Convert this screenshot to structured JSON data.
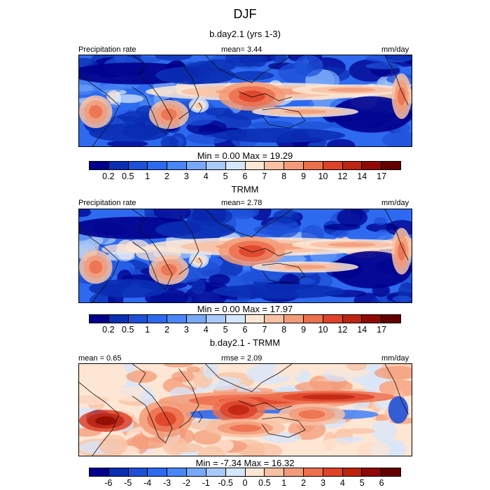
{
  "title": "DJF",
  "chart_data": [
    {
      "type": "heatmap",
      "title": "b.day2.1 (yrs 1-3)",
      "left_label": "Precipitation rate",
      "center_label": "mean=   3.44",
      "units": "mm/day",
      "min_max": "Min =   0.00 Max =  19.29",
      "colorbar_ticks": [
        "0.2",
        "0.5",
        "1",
        "2",
        "3",
        "4",
        "5",
        "6",
        "7",
        "8",
        "9",
        "10",
        "12",
        "14",
        "17"
      ],
      "colors": [
        "#00008c",
        "#0a2fb4",
        "#1e50d7",
        "#2d6af0",
        "#4a86f5",
        "#78a8f8",
        "#a9c9fa",
        "#d6e6fc",
        "#fde6d4",
        "#f8c1a3",
        "#f39b78",
        "#ec6f4e",
        "#de4228",
        "#bd2412",
        "#8f0a05",
        "#650000"
      ]
    },
    {
      "type": "heatmap",
      "title": "TRMM",
      "left_label": "Precipitation rate",
      "center_label": "mean=   2.78",
      "units": "mm/day",
      "min_max": "Min =   0.00 Max =  17.97",
      "colorbar_ticks": [
        "0.2",
        "0.5",
        "1",
        "2",
        "3",
        "4",
        "5",
        "6",
        "7",
        "8",
        "9",
        "10",
        "12",
        "14",
        "17"
      ],
      "colors": [
        "#00008c",
        "#0a2fb4",
        "#1e50d7",
        "#2d6af0",
        "#4a86f5",
        "#78a8f8",
        "#a9c9fa",
        "#d6e6fc",
        "#fde6d4",
        "#f8c1a3",
        "#f39b78",
        "#ec6f4e",
        "#de4228",
        "#bd2412",
        "#8f0a05",
        "#650000"
      ]
    },
    {
      "type": "heatmap",
      "title": "b.day2.1 - TRMM",
      "left_label": "mean =   0.65",
      "center_label": "rmse =   2.09",
      "units": "mm/day",
      "min_max": "Min =  -7.34 Max =  16.32",
      "colorbar_ticks": [
        "-6",
        "-5",
        "-4",
        "-3",
        "-2",
        "-1",
        "-0.5",
        "0",
        "0.5",
        "1",
        "2",
        "3",
        "4",
        "5",
        "6"
      ],
      "colors": [
        "#00008c",
        "#0a2fb4",
        "#1e50d7",
        "#2d6af0",
        "#4a86f5",
        "#78a8f8",
        "#a9c9fa",
        "#d6e6fc",
        "#fde6d4",
        "#f8c1a3",
        "#f39b78",
        "#ec6f4e",
        "#de4228",
        "#bd2412",
        "#8f0a05",
        "#650000"
      ]
    }
  ]
}
